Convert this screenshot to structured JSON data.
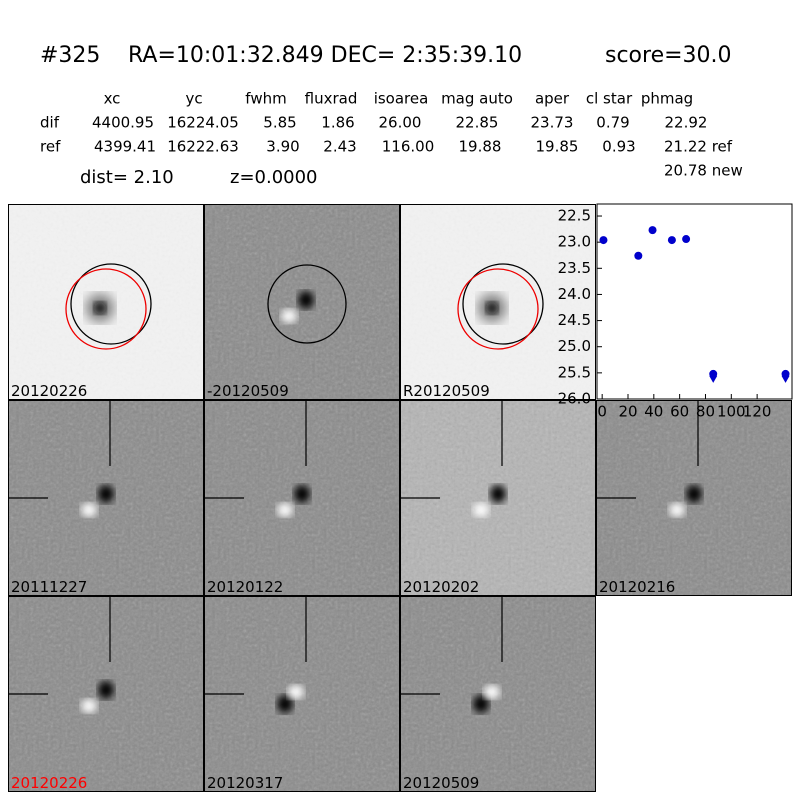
{
  "header": {
    "id": "#325",
    "coords": "RA=10:01:32.849 DEC= 2:35:39.10",
    "score": "score=30.0"
  },
  "table": {
    "columns": [
      "xc",
      "yc",
      "fwhm",
      "fluxrad",
      "isoarea",
      "mag auto",
      "aper",
      "cl star",
      "phmag"
    ],
    "rows": [
      {
        "label": "dif",
        "cells": [
          "4400.95",
          "16224.05",
          "5.85",
          "1.86",
          "26.00",
          "22.85",
          "23.73",
          "0.79",
          "22.92"
        ]
      },
      {
        "label": "ref",
        "cells": [
          "4399.41",
          "16222.63",
          "3.90",
          "2.43",
          "116.00",
          "19.88",
          "19.85",
          "0.93",
          "21.22 ref"
        ]
      }
    ],
    "extra": "20.78 new"
  },
  "dist": "dist=  2.10",
  "z": "z=0.0000",
  "stamps": [
    {
      "label": "20120226"
    },
    {
      "label": "-20120509"
    },
    {
      "label": "R20120509"
    },
    {
      "label": "20111227"
    },
    {
      "label": "20120122"
    },
    {
      "label": "20120202"
    },
    {
      "label": "20120216"
    },
    {
      "label": "20120226",
      "color": "#ff0000"
    },
    {
      "label": "20120317"
    },
    {
      "label": "20120509"
    }
  ],
  "chart_data": {
    "type": "scatter",
    "x": [
      1,
      28,
      39,
      54,
      65,
      86,
      142
    ],
    "values": [
      22.96,
      23.26,
      22.77,
      22.96,
      22.94,
      25.52,
      25.52
    ],
    "markers": [
      "o",
      "o",
      "o",
      "o",
      "o",
      "v",
      "v"
    ],
    "color": "#0000cc",
    "xlim": [
      -4,
      147
    ],
    "ylim": [
      26.0,
      22.27
    ],
    "xticks": [
      0,
      20,
      40,
      60,
      80,
      100,
      120
    ],
    "yticks": [
      22.5,
      {
        "value": 23,
        "label": "23.0"
      },
      23.5,
      {
        "value": 24,
        "label": "24.0"
      },
      24.5,
      {
        "value": 25,
        "label": "25.0"
      },
      25.5,
      {
        "value": 26,
        "label": "26.0"
      }
    ]
  }
}
